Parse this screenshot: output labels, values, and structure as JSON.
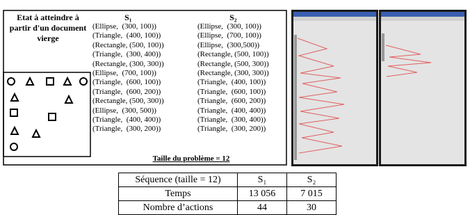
{
  "figure": {
    "goal_label": "Etat à atteindre à partir d'un document vierge",
    "sequences": [
      {
        "name": "S₁",
        "actions": [
          "(Ellipse,  (300, 100))",
          "(Triangle,  (400, 100))",
          "(Rectangle, (500, 100))",
          "(Triangle,  (300, 400))",
          "(Rectangle, (300, 300))",
          "(Ellipse,  (700, 100))",
          "(Triangle,  (600, 100))",
          "(Triangle,  (600, 200))",
          "(Rectangle, (500, 300))",
          "(Ellipse,  (300, 500))",
          "(Triangle,  (400, 400))",
          "(Triangle,  (300, 200))"
        ]
      },
      {
        "name": "S₂",
        "actions": [
          "(Ellipse,  (300, 100))",
          "(Ellipse,  (700, 100))",
          "(Ellipse,  (300,500))",
          "(Rectangle, (500, 100))",
          "(Rectangle, (500, 300))",
          "(Rectangle, (300, 300))",
          "(Triangle,  (400, 100))",
          "(Triangle,  (600, 100))",
          "(Triangle,  (600, 200))",
          "(Triangle,  (400, 400))",
          "(Triangle,  (300, 400))",
          "(Triangle,  (300, 200))"
        ]
      }
    ],
    "caption": "Taille du problème = 12"
  },
  "table": {
    "header": [
      "Séquence (taille = 12)",
      "S₁",
      "S₂"
    ],
    "rows": [
      [
        "Temps",
        "13 056",
        "7 015"
      ],
      [
        "Nombre d’actions",
        "44",
        "30"
      ]
    ]
  }
}
